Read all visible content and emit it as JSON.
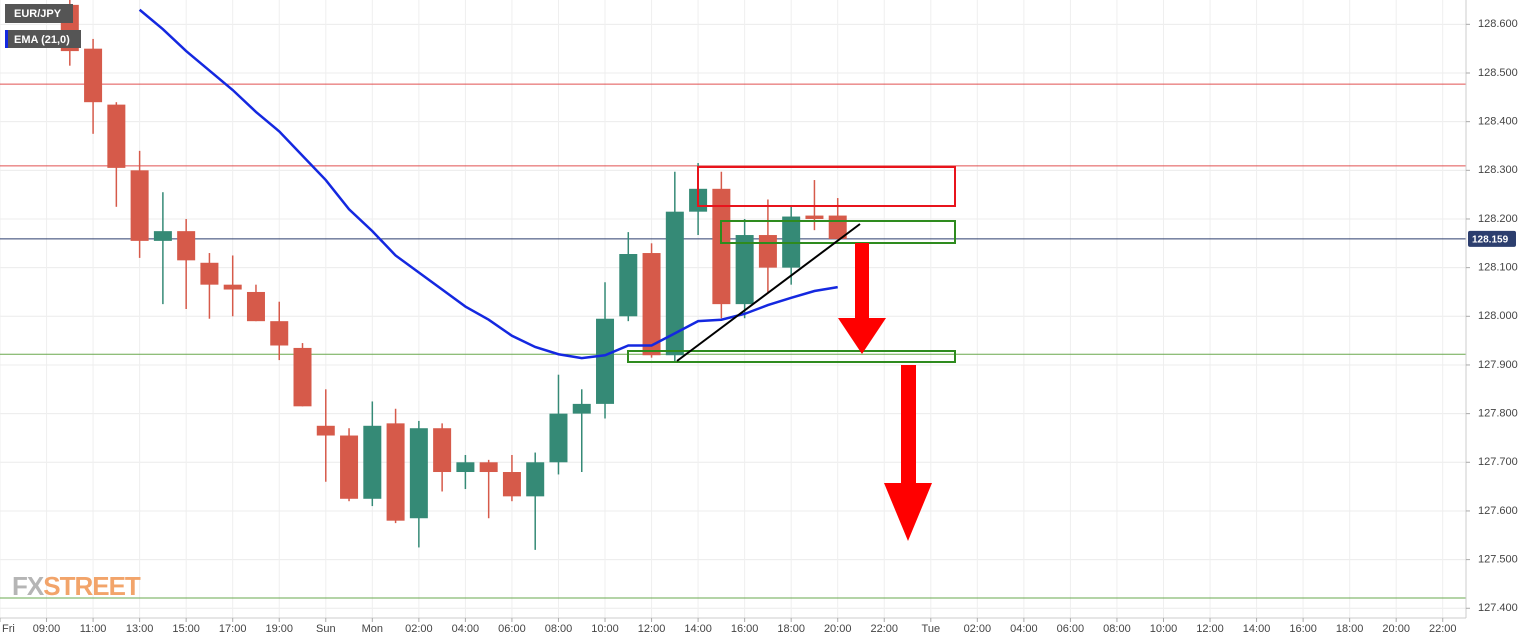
{
  "chart_data": {
    "type": "candlestick",
    "symbol": "EUR/JPY",
    "watermark": [
      "FX",
      "STREET"
    ],
    "up_color": "#358a76",
    "down_color": "#d65a4a",
    "grid": true,
    "xlim": [
      7,
      70
    ],
    "ylim": [
      127.38,
      128.65
    ],
    "xticks": [
      {
        "value": 7,
        "label": "Fri"
      },
      {
        "value": 9,
        "label": "09:00"
      },
      {
        "value": 11,
        "label": "11:00"
      },
      {
        "value": 13,
        "label": "13:00"
      },
      {
        "value": 15,
        "label": "15:00"
      },
      {
        "value": 17,
        "label": "17:00"
      },
      {
        "value": 19,
        "label": "19:00"
      },
      {
        "value": 21,
        "label": "Sun"
      },
      {
        "value": 23,
        "label": "Mon"
      },
      {
        "value": 25,
        "label": "02:00"
      },
      {
        "value": 27,
        "label": "04:00"
      },
      {
        "value": 29,
        "label": "06:00"
      },
      {
        "value": 31,
        "label": "08:00"
      },
      {
        "value": 33,
        "label": "10:00"
      },
      {
        "value": 35,
        "label": "12:00"
      },
      {
        "value": 37,
        "label": "14:00"
      },
      {
        "value": 39,
        "label": "16:00"
      },
      {
        "value": 41,
        "label": "18:00"
      },
      {
        "value": 43,
        "label": "20:00"
      },
      {
        "value": 45,
        "label": "22:00"
      },
      {
        "value": 47,
        "label": "Tue"
      },
      {
        "value": 49,
        "label": "02:00"
      },
      {
        "value": 51,
        "label": "04:00"
      },
      {
        "value": 53,
        "label": "06:00"
      },
      {
        "value": 55,
        "label": "08:00"
      },
      {
        "value": 57,
        "label": "10:00"
      },
      {
        "value": 59,
        "label": "12:00"
      },
      {
        "value": 61,
        "label": "14:00"
      },
      {
        "value": 63,
        "label": "16:00"
      },
      {
        "value": 65,
        "label": "18:00"
      },
      {
        "value": 67,
        "label": "20:00"
      },
      {
        "value": 69,
        "label": "22:00"
      }
    ],
    "yticks": [
      {
        "value": 127.4,
        "label": "127.400"
      },
      {
        "value": 127.5,
        "label": "127.500"
      },
      {
        "value": 127.6,
        "label": "127.600"
      },
      {
        "value": 127.7,
        "label": "127.700"
      },
      {
        "value": 127.8,
        "label": "127.800"
      },
      {
        "value": 127.9,
        "label": "127.900"
      },
      {
        "value": 128.0,
        "label": "128.000"
      },
      {
        "value": 128.1,
        "label": "128.100"
      },
      {
        "value": 128.2,
        "label": "128.200"
      },
      {
        "value": 128.3,
        "label": "128.300"
      },
      {
        "value": 128.4,
        "label": "128.400"
      },
      {
        "value": 128.5,
        "label": "128.500"
      },
      {
        "value": 128.6,
        "label": "128.600"
      }
    ],
    "candles": {
      "x": [
        10,
        11,
        12,
        13,
        14,
        15,
        16,
        17,
        18,
        19,
        20,
        21,
        22,
        23,
        24,
        25,
        26,
        27,
        28,
        29,
        30,
        31,
        32,
        33,
        34,
        35,
        36,
        37,
        38,
        39,
        40,
        41,
        42,
        43
      ],
      "open": [
        128.64,
        128.55,
        128.435,
        128.3,
        128.155,
        128.175,
        128.11,
        128.065,
        128.05,
        127.99,
        127.935,
        127.775,
        127.755,
        127.625,
        127.78,
        127.585,
        127.77,
        127.68,
        127.7,
        127.68,
        127.63,
        127.7,
        127.8,
        127.82,
        128.0,
        128.13,
        127.92,
        128.215,
        128.262,
        128.025,
        128.167,
        128.1,
        128.207,
        128.207
      ],
      "high": [
        128.65,
        128.57,
        128.44,
        128.34,
        128.255,
        128.2,
        128.13,
        128.125,
        128.065,
        128.03,
        127.945,
        127.85,
        127.77,
        127.825,
        127.81,
        127.785,
        127.78,
        127.715,
        127.705,
        127.715,
        127.72,
        127.88,
        127.85,
        128.07,
        128.173,
        128.15,
        128.297,
        128.315,
        128.297,
        128.2,
        128.24,
        128.225,
        128.28,
        128.243
      ],
      "low": [
        128.515,
        128.375,
        128.225,
        128.12,
        128.025,
        128.015,
        127.995,
        128.0,
        127.99,
        127.91,
        127.815,
        127.66,
        127.62,
        127.61,
        127.575,
        127.525,
        127.64,
        127.645,
        127.585,
        127.62,
        127.52,
        127.675,
        127.68,
        127.79,
        127.99,
        127.915,
        127.905,
        128.167,
        127.996,
        127.996,
        128.05,
        128.065,
        128.177,
        128.159
      ],
      "close": [
        128.545,
        128.44,
        128.305,
        128.155,
        128.175,
        128.115,
        128.065,
        128.055,
        127.99,
        127.94,
        127.815,
        127.755,
        127.625,
        127.775,
        127.58,
        127.77,
        127.68,
        127.7,
        127.68,
        127.63,
        127.7,
        127.8,
        127.82,
        127.995,
        128.128,
        127.92,
        128.215,
        128.262,
        128.025,
        128.167,
        128.1,
        128.205,
        128.2,
        128.159
      ]
    },
    "series": [
      {
        "name": "EMA (21,0)",
        "color": "#1428e0",
        "x": [
          13,
          14,
          15,
          16,
          17,
          18,
          19,
          20,
          21,
          22,
          23,
          24,
          25,
          26,
          27,
          28,
          29,
          30,
          31,
          32,
          33,
          34,
          35,
          36,
          37,
          38,
          39,
          40,
          41,
          42,
          43
        ],
        "values": [
          128.63,
          128.59,
          128.545,
          128.505,
          128.465,
          128.42,
          128.38,
          128.33,
          128.28,
          128.22,
          128.175,
          128.125,
          128.09,
          128.055,
          128.02,
          127.993,
          127.96,
          127.937,
          127.922,
          127.914,
          127.92,
          127.94,
          127.94,
          127.965,
          127.99,
          127.993,
          128.005,
          128.023,
          128.038,
          128.052,
          128.06
        ]
      }
    ],
    "hlines": [
      {
        "value": 128.477,
        "color": "#e05050"
      },
      {
        "value": 128.309,
        "color": "#e05050"
      },
      {
        "value": 127.922,
        "color": "#6aa84f"
      },
      {
        "value": 127.421,
        "color": "#6aa84f"
      }
    ],
    "last_price": 128.159,
    "last_price_color": "#2c3e6e"
  }
}
